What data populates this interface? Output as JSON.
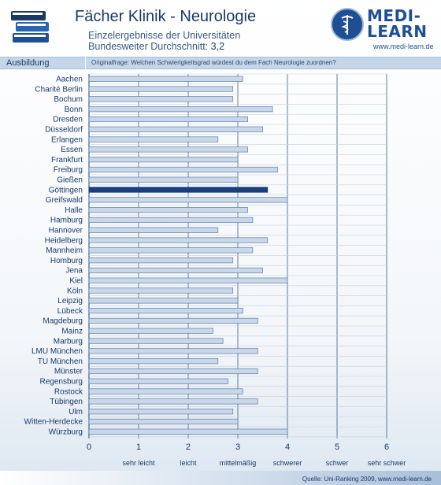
{
  "header": {
    "title": "Fächer Klinik - Neurologie",
    "subtitle_line1": "Einzelergebnisse der Universitäten",
    "subtitle_line2_prefix": "Bundesweiter Durchschnitt: ",
    "subtitle_line2_value": "3,2"
  },
  "logo": {
    "line1": "MEDI-",
    "line2": "LEARN",
    "url": "www.medi-learn.de",
    "icon": "caduceus-icon",
    "color": "#1e4f94"
  },
  "band": {
    "label": "Ausbildung",
    "question": "Originalfrage: Welchen Schwierigkeitsgrad würdest du dem Fach Neurologie zuordnen?"
  },
  "footer": {
    "source": "Quelle: Uni-Ranking 2009, www.medi-learn.de"
  },
  "colors": {
    "bar": "#c9d7e8",
    "bar_edge": "#5c7fa8",
    "highlight": "#1b3f7a",
    "grid": "#3a5a80"
  },
  "chart_data": {
    "type": "bar",
    "orientation": "horizontal",
    "categories": [
      "Aachen",
      "Charité Berlin",
      "Bochum",
      "Bonn",
      "Dresden",
      "Düsseldorf",
      "Erlangen",
      "Essen",
      "Frankfurt",
      "Freiburg",
      "Gießen",
      "Göttingen",
      "Greifswald",
      "Halle",
      "Hamburg",
      "Hannover",
      "Heidelberg",
      "Mannheim",
      "Homburg",
      "Jena",
      "Kiel",
      "Köln",
      "Leipzig",
      "Lübeck",
      "Magdeburg",
      "Mainz",
      "Marburg",
      "LMU München",
      "TU München",
      "Münster",
      "Regensburg",
      "Rostock",
      "Tübingen",
      "Ulm",
      "Witten-Herdecke",
      "Würzburg"
    ],
    "values": [
      3.1,
      2.9,
      2.9,
      3.7,
      3.2,
      3.5,
      2.6,
      3.2,
      3.0,
      3.8,
      3.0,
      3.6,
      4.0,
      3.2,
      3.3,
      2.6,
      3.6,
      3.3,
      2.9,
      3.5,
      4.0,
      2.9,
      3.0,
      3.1,
      3.4,
      2.5,
      2.7,
      3.4,
      2.6,
      3.4,
      2.8,
      3.1,
      3.4,
      2.9,
      3.0,
      4.0
    ],
    "highlight": "Göttingen",
    "xlim": [
      0,
      6
    ],
    "xticks": [
      "0",
      "1",
      "2",
      "3",
      "4",
      "5",
      "6"
    ],
    "xtick_labels": [
      "sehr leicht",
      "leicht",
      "mittelmäßig",
      "schwerer",
      "schwer",
      "sehr schwer"
    ],
    "grid": true
  }
}
